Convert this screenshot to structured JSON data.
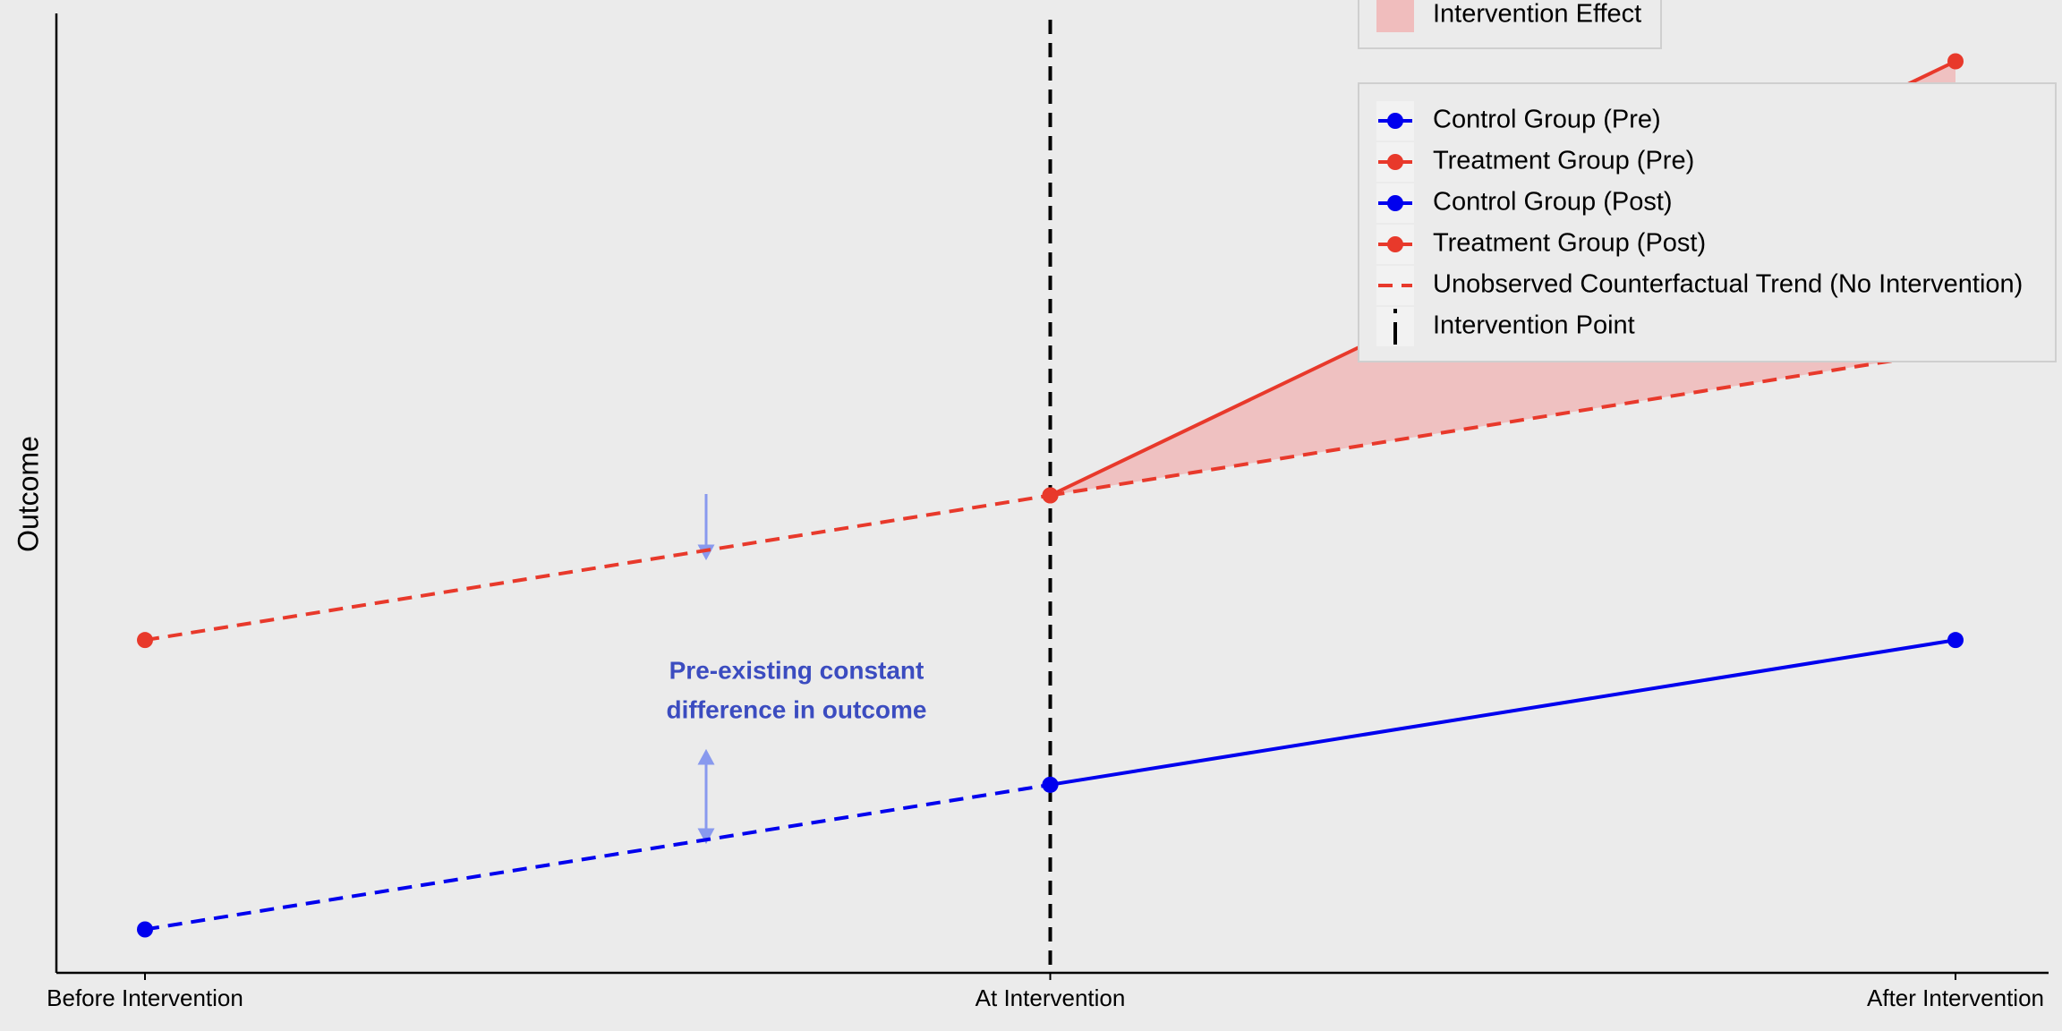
{
  "chart_data": {
    "type": "line",
    "y_label": "Outcome",
    "categories": [
      "Before Intervention",
      "At Intervention",
      "After Intervention"
    ],
    "ylim": [
      0,
      6.6
    ],
    "series": [
      {
        "name": "Control Group (Pre)",
        "color": "#0000ee",
        "style": "dashed",
        "marker": true,
        "values": [
          0.3,
          1.3,
          null
        ]
      },
      {
        "name": "Treatment Group (Pre)",
        "color": "#e8392b",
        "style": "dashed",
        "marker": true,
        "values": [
          2.3,
          3.3,
          null
        ]
      },
      {
        "name": "Control Group (Post)",
        "color": "#0000ee",
        "style": "solid",
        "marker": true,
        "values": [
          null,
          1.3,
          2.3
        ]
      },
      {
        "name": "Treatment Group (Post)",
        "color": "#e8392b",
        "style": "solid",
        "marker": true,
        "values": [
          null,
          3.3,
          6.3
        ]
      },
      {
        "name": "Unobserved Counterfactual Trend (No Intervention)",
        "color": "#e8392b",
        "style": "dashed",
        "marker": false,
        "values": [
          null,
          3.3,
          4.3
        ]
      }
    ],
    "vline": {
      "name": "Intervention Point",
      "color": "#000000",
      "at": 1
    },
    "area": {
      "name": "Intervention Effect",
      "color": "#f0bdbd",
      "between": [
        3,
        4
      ]
    },
    "annotation": {
      "lines": [
        "Pre-existing constant",
        "difference in outcome"
      ],
      "color": "#3b4cc0"
    }
  }
}
